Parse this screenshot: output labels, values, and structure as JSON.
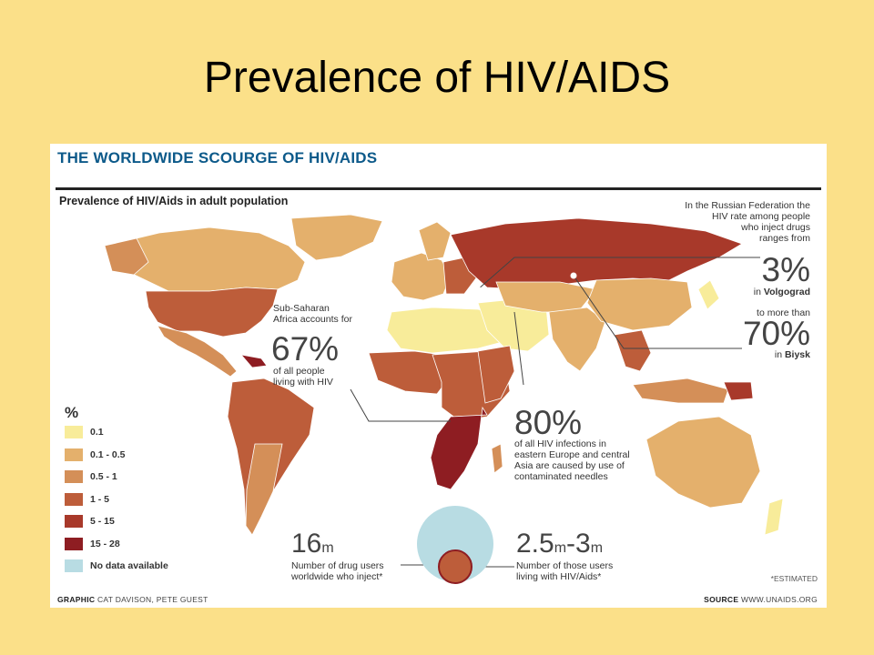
{
  "slide": {
    "title": "Prevalence of HIV/AIDS"
  },
  "infographic": {
    "title": "THE WORLDWIDE SCOURGE OF HIV/AIDS",
    "subtitle": "Prevalence of HIV/Aids in adult population",
    "legend": {
      "header": "%",
      "items": [
        {
          "label": "0.1",
          "color": "#f8ec9a"
        },
        {
          "label": "0.1 - 0.5",
          "color": "#e4b06c"
        },
        {
          "label": "0.5 - 1",
          "color": "#d48f58"
        },
        {
          "label": "1 - 5",
          "color": "#bd5d3a"
        },
        {
          "label": "5 - 15",
          "color": "#a8392a"
        },
        {
          "label": "15 - 28",
          "color": "#8e1d22"
        },
        {
          "label": "No data available",
          "color": "#b8dce3"
        }
      ]
    },
    "annotations": {
      "africa": {
        "line1": "Sub-Saharan",
        "line2": "Africa accounts for",
        "value": "67%",
        "line3": "of all people",
        "line4": "living with HIV"
      },
      "eastern_europe": {
        "value": "80%",
        "line1": "of all HIV infections in",
        "line2": "eastern Europe and central",
        "line3": "Asia are caused by use of",
        "line4": "contaminated needles"
      },
      "russia": {
        "line1": "In the Russian Federation the",
        "line2": "HIV rate among people",
        "line3": "who inject drugs",
        "line4": "ranges from",
        "value_low": "3%",
        "city_low_prefix": "in",
        "city_low": "Volgograd",
        "middle": "to more than",
        "value_high": "70%",
        "city_high_prefix": "in",
        "city_high": "Biysk"
      },
      "drug_users": {
        "value": "16",
        "unit": "m",
        "line1": "Number of drug users",
        "line2": "worldwide who inject*"
      },
      "living_with_hiv": {
        "value_a": "2.5",
        "unit_a": "m",
        "dash": "-",
        "value_b": "3",
        "unit_b": "m",
        "line1": "Number of those users",
        "line2": "living with HIV/Aids*"
      },
      "estimated": "*ESTIMATED"
    },
    "footer": {
      "graphic_label": "GRAPHIC",
      "graphic_credit": "CAT DAVISON, PETE GUEST",
      "source_label": "SOURCE",
      "source_value": "WWW.UNAIDS.ORG"
    }
  }
}
